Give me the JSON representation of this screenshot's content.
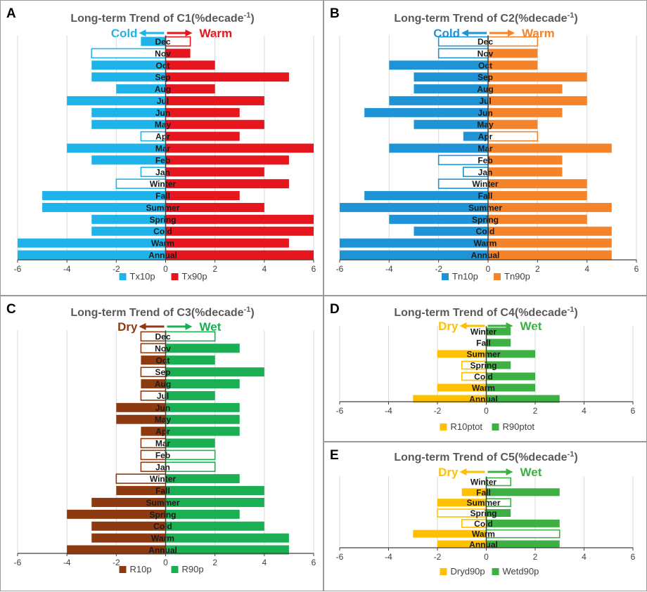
{
  "chart_data": [
    {
      "id": "A",
      "type": "bar",
      "orientation": "horizontal-diverging",
      "panel_label": "A",
      "title": "Long-term Trend of C1(%decade",
      "title_sup": "-1",
      "title_close": ")",
      "left_label": "Cold",
      "right_label": "Warm",
      "left_color": "#1EB4EA",
      "right_color": "#E5161D",
      "xlim": [
        -6,
        6
      ],
      "xticks": [
        -6,
        -4,
        -2,
        0,
        2,
        4,
        6
      ],
      "categories": [
        "Dec",
        "Nov",
        "Oct",
        "Sep",
        "Aug",
        "Jul",
        "Jun",
        "May",
        "Apr",
        "Mar",
        "Feb",
        "Jan",
        "Winter",
        "Fall",
        "Summer",
        "Spring",
        "Cold",
        "Warm",
        "Annual"
      ],
      "series": [
        {
          "name": "Tx10p",
          "color": "#1EB4EA",
          "values": [
            -1,
            -3,
            -3,
            -3,
            -2,
            -4,
            -3,
            -3,
            -1,
            -4,
            -3,
            -1,
            -2,
            -5,
            -5,
            -3,
            -3,
            -6,
            -6
          ],
          "hollow": [
            false,
            true,
            false,
            false,
            false,
            false,
            false,
            false,
            true,
            false,
            false,
            true,
            true,
            false,
            false,
            false,
            false,
            false,
            false
          ]
        },
        {
          "name": "Tx90p",
          "color": "#E5161D",
          "values": [
            1,
            1,
            2,
            5,
            2,
            4,
            3,
            4,
            3,
            6,
            5,
            4,
            5,
            3,
            4,
            6,
            6,
            5,
            6
          ],
          "hollow": [
            true,
            false,
            false,
            false,
            false,
            false,
            false,
            false,
            false,
            false,
            false,
            false,
            false,
            false,
            false,
            false,
            false,
            false,
            false
          ]
        }
      ]
    },
    {
      "id": "B",
      "type": "bar",
      "orientation": "horizontal-diverging",
      "panel_label": "B",
      "title": "Long-term Trend of C2(%decade",
      "title_sup": "-1",
      "title_close": ")",
      "left_label": "Cold",
      "right_label": "Warm",
      "left_color": "#1E94D6",
      "right_color": "#F5832A",
      "xlim": [
        -6,
        6
      ],
      "xticks": [
        -6,
        -4,
        -2,
        0,
        2,
        4,
        6
      ],
      "categories": [
        "Dec",
        "Nov",
        "Oct",
        "Sep",
        "Aug",
        "Jul",
        "Jun",
        "May",
        "Apr",
        "Mar",
        "Feb",
        "Jan",
        "Winter",
        "Fall",
        "Summer",
        "Spring",
        "Cold",
        "Warm",
        "Annual"
      ],
      "series": [
        {
          "name": "Tn10p",
          "color": "#1E94D6",
          "values": [
            -2,
            -2,
            -4,
            -3,
            -3,
            -4,
            -5,
            -3,
            -1,
            -4,
            -2,
            -1,
            -2,
            -5,
            -6,
            -4,
            -3,
            -6,
            -6
          ],
          "hollow": [
            true,
            true,
            false,
            false,
            false,
            false,
            false,
            false,
            false,
            false,
            true,
            true,
            true,
            false,
            false,
            false,
            false,
            false,
            false
          ]
        },
        {
          "name": "Tn90p",
          "color": "#F5832A",
          "values": [
            2,
            2,
            2,
            4,
            3,
            4,
            3,
            2,
            2,
            5,
            3,
            3,
            4,
            4,
            5,
            4,
            5,
            5,
            5
          ],
          "hollow": [
            true,
            false,
            false,
            false,
            false,
            false,
            false,
            false,
            true,
            false,
            false,
            false,
            false,
            false,
            false,
            false,
            false,
            false,
            false
          ]
        }
      ]
    },
    {
      "id": "C",
      "type": "bar",
      "orientation": "horizontal-diverging",
      "panel_label": "C",
      "title": "Long-term Trend of C3(%decade",
      "title_sup": "-1",
      "title_close": ")",
      "left_label": "Dry",
      "right_label": "Wet",
      "left_color": "#8E3A10",
      "right_color": "#1BAF54",
      "xlim": [
        -6,
        6
      ],
      "xticks": [
        -6,
        -4,
        -2,
        0,
        2,
        4,
        6
      ],
      "categories": [
        "Dec",
        "Nov",
        "Oct",
        "Sep",
        "Aug",
        "Jul",
        "Jun",
        "May",
        "Apr",
        "Mar",
        "Feb",
        "Jan",
        "Winter",
        "Fall",
        "Summer",
        "Spring",
        "Cold",
        "Warm",
        "Annual"
      ],
      "series": [
        {
          "name": "R10p",
          "color": "#8E3A10",
          "values": [
            -1,
            -1,
            -1,
            -1,
            -1,
            -1,
            -2,
            -2,
            -1,
            -1,
            -1,
            -1,
            -2,
            -2,
            -3,
            -4,
            -3,
            -3,
            -4
          ],
          "hollow": [
            true,
            true,
            false,
            true,
            false,
            true,
            false,
            false,
            false,
            true,
            true,
            true,
            true,
            false,
            false,
            false,
            false,
            false,
            false
          ]
        },
        {
          "name": "R90p",
          "color": "#1BAF54",
          "values": [
            2,
            3,
            2,
            4,
            3,
            2,
            3,
            3,
            3,
            2,
            2,
            2,
            3,
            4,
            4,
            3,
            4,
            5,
            5
          ],
          "hollow": [
            true,
            false,
            false,
            false,
            false,
            false,
            false,
            false,
            false,
            false,
            true,
            true,
            false,
            false,
            false,
            false,
            false,
            false,
            false
          ]
        }
      ]
    },
    {
      "id": "D",
      "type": "bar",
      "orientation": "horizontal-diverging",
      "panel_label": "D",
      "title": "Long-term Trend of C4(%decade",
      "title_sup": "-1",
      "title_close": ")",
      "left_label": "Dry",
      "right_label": "Wet",
      "left_color": "#FFC000",
      "right_color": "#3CB043",
      "xlim": [
        -6,
        6
      ],
      "xticks": [
        -6,
        -4,
        -2,
        0,
        2,
        4,
        6
      ],
      "categories": [
        "Winter",
        "Fall",
        "Summer",
        "Spring",
        "Cold",
        "Warm",
        "Annual"
      ],
      "series": [
        {
          "name": "R10ptot",
          "color": "#FFC000",
          "values": [
            0,
            0,
            -2,
            -1,
            -1,
            -2,
            -3
          ],
          "hollow": [
            false,
            false,
            false,
            true,
            true,
            false,
            false
          ]
        },
        {
          "name": "R90ptot",
          "color": "#3CB043",
          "values": [
            1,
            1,
            2,
            1,
            2,
            2,
            3
          ],
          "hollow": [
            false,
            false,
            false,
            false,
            false,
            false,
            false
          ]
        }
      ]
    },
    {
      "id": "E",
      "type": "bar",
      "orientation": "horizontal-diverging",
      "panel_label": "E",
      "title": "Long-term Trend of C5(%decade",
      "title_sup": "-1",
      "title_close": ")",
      "left_label": "Dry",
      "right_label": "Wet",
      "left_color": "#FFC000",
      "right_color": "#3CB043",
      "xlim": [
        -6,
        6
      ],
      "xticks": [
        -6,
        -4,
        -2,
        0,
        2,
        4,
        6
      ],
      "categories": [
        "Winter",
        "Fall",
        "Summer",
        "Spring",
        "Cold",
        "Warm",
        "Annual"
      ],
      "series": [
        {
          "name": "Dryd90p",
          "color": "#FFC000",
          "values": [
            0,
            -1,
            -2,
            -2,
            -1,
            -3,
            -2
          ],
          "hollow": [
            false,
            false,
            false,
            true,
            true,
            false,
            false
          ]
        },
        {
          "name": "Wetd90p",
          "color": "#3CB043",
          "values": [
            1,
            3,
            1,
            1,
            3,
            3,
            3
          ],
          "hollow": [
            true,
            false,
            true,
            false,
            false,
            true,
            false
          ]
        }
      ]
    }
  ]
}
